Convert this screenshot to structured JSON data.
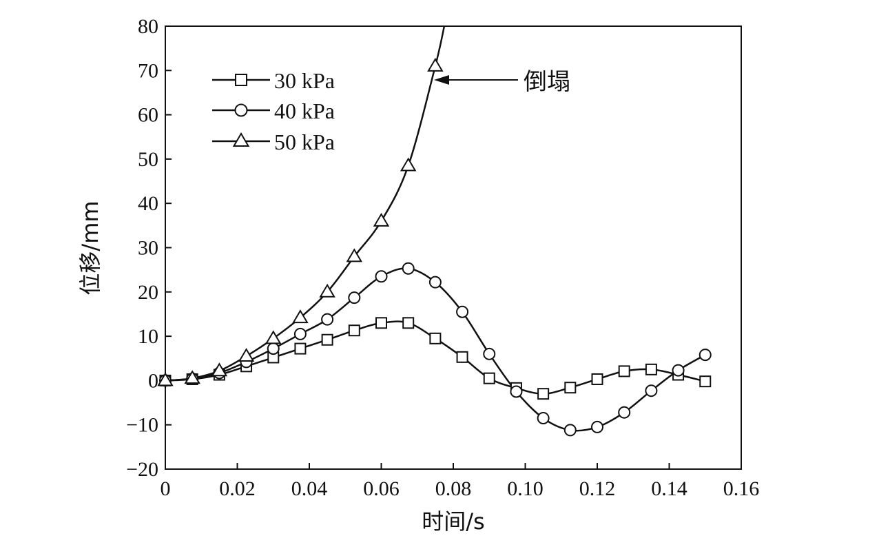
{
  "chart_data": {
    "type": "line",
    "xlabel": "时间/s",
    "ylabel": "位移/mm",
    "xlim": [
      0,
      0.16
    ],
    "ylim": [
      -20,
      80
    ],
    "xticks": [
      "0",
      "0.02",
      "0.04",
      "0.06",
      "0.08",
      "0.10",
      "0.12",
      "0.14",
      "0.16"
    ],
    "yticks": [
      "80",
      "70",
      "60",
      "50",
      "40",
      "30",
      "20",
      "10",
      "0",
      "−10",
      "−20"
    ],
    "grid": false,
    "legend_position": "top-left",
    "series": [
      {
        "name": "30 kPa",
        "marker": "square",
        "x": [
          0,
          0.0075,
          0.015,
          0.0225,
          0.03,
          0.0375,
          0.045,
          0.0525,
          0.06,
          0.0675,
          0.075,
          0.0825,
          0.09,
          0.0975,
          0.105,
          0.1125,
          0.12,
          0.1275,
          0.135,
          0.1425,
          0.15
        ],
        "y": [
          0,
          0.3,
          1.3,
          3.2,
          5.2,
          7.2,
          9.2,
          11.3,
          13.0,
          13.0,
          9.5,
          5.3,
          0.5,
          -1.7,
          -3.0,
          -1.6,
          0.3,
          2.1,
          2.5,
          1.3,
          -0.2
        ]
      },
      {
        "name": "40 kPa",
        "marker": "circle",
        "x": [
          0,
          0.0075,
          0.015,
          0.0225,
          0.03,
          0.0375,
          0.045,
          0.0525,
          0.06,
          0.0675,
          0.075,
          0.0825,
          0.09,
          0.0975,
          0.105,
          0.1125,
          0.12,
          0.1275,
          0.135,
          0.1425,
          0.15
        ],
        "y": [
          0,
          0.4,
          1.7,
          4.2,
          7.2,
          10.5,
          13.8,
          18.7,
          23.5,
          25.3,
          22.2,
          15.5,
          6.0,
          -2.5,
          -8.5,
          -11.2,
          -10.5,
          -7.2,
          -2.3,
          2.3,
          5.8
        ]
      },
      {
        "name": "50 kPa",
        "marker": "triangle",
        "x": [
          0,
          0.0075,
          0.015,
          0.0225,
          0.03,
          0.0375,
          0.045,
          0.0525,
          0.06,
          0.0675,
          0.075
        ],
        "y": [
          0,
          0.5,
          2.2,
          5.5,
          9.5,
          14.2,
          20.0,
          28.0,
          36.0,
          48.5,
          71.0
        ],
        "extend_to_top_at_x": 0.0775
      }
    ],
    "annotations": [
      {
        "text": "倒塌",
        "x": 0.075,
        "y": 71.0
      }
    ]
  }
}
